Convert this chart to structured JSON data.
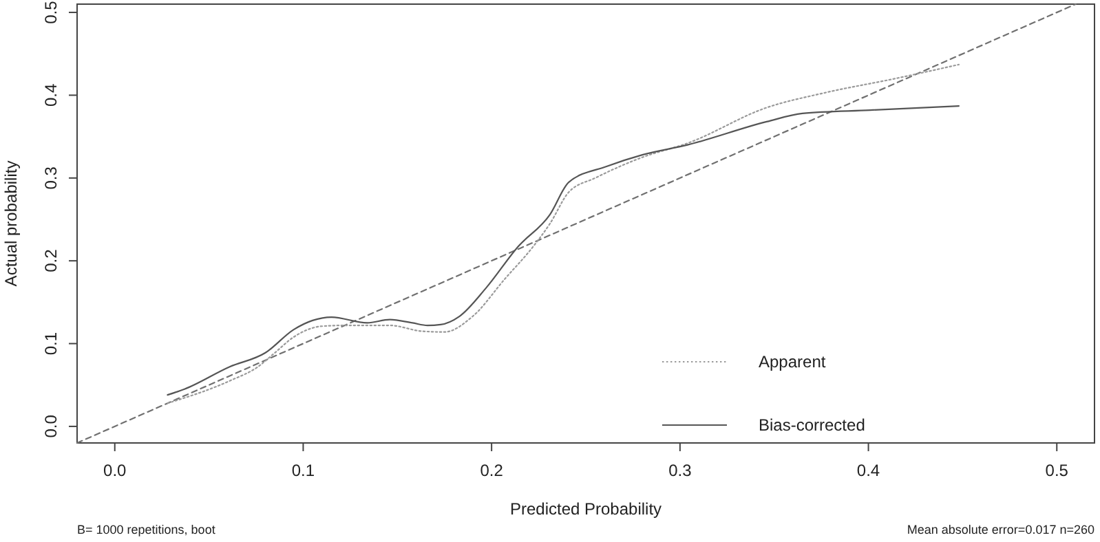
{
  "chart_data": {
    "type": "line",
    "xlabel": "Predicted Probability",
    "ylabel": "Actual probability",
    "xlim": [
      -0.02,
      0.52
    ],
    "xticks": [
      {
        "value": 0,
        "label": "0.0"
      },
      0.1,
      0.2,
      0.3,
      0.4,
      0.5
    ],
    "ylim": [
      -0.02,
      0.51
    ],
    "yticks": [
      {
        "value": 0,
        "label": "0.0"
      },
      0.1,
      0.2,
      0.3,
      0.4,
      0.5
    ],
    "grid": false,
    "legend": "bottom right",
    "marker": "none",
    "annotations": [
      "B= 1000 repetitions, boot",
      "Mean absolute error=0.017 n=260"
    ],
    "series": [
      {
        "color": "#707070",
        "line_style": "dashed",
        "x": [
          -0.02,
          0.51
        ],
        "values": [
          -0.02,
          0.51
        ]
      },
      {
        "name": "Apparent",
        "color": "#9a9a9a",
        "line_style": "dotted",
        "x": [
          0.028,
          0.061,
          0.076,
          0.085,
          0.095,
          0.11,
          0.122,
          0.146,
          0.163,
          0.175,
          0.19,
          0.207,
          0.222,
          0.231,
          0.241,
          0.255,
          0.28,
          0.304,
          0.346,
          0.377,
          0.414,
          0.448
        ],
        "values": [
          0.028,
          0.055,
          0.072,
          0.089,
          0.108,
          0.121,
          0.122,
          0.122,
          0.115,
          0.114,
          0.133,
          0.178,
          0.217,
          0.245,
          0.283,
          0.3,
          0.325,
          0.342,
          0.385,
          0.403,
          0.42,
          0.437
        ]
      },
      {
        "name": "Bias-corrected",
        "color": "#555555",
        "line_style": "solid",
        "x": [
          0.028,
          0.037,
          0.061,
          0.08,
          0.095,
          0.105,
          0.115,
          0.134,
          0.146,
          0.158,
          0.166,
          0.173,
          0.183,
          0.197,
          0.214,
          0.231,
          0.241,
          0.261,
          0.28,
          0.304,
          0.346,
          0.365,
          0.401,
          0.448
        ],
        "values": [
          0.038,
          0.045,
          0.072,
          0.089,
          0.117,
          0.128,
          0.132,
          0.125,
          0.129,
          0.125,
          0.122,
          0.123,
          0.133,
          0.167,
          0.217,
          0.256,
          0.295,
          0.314,
          0.328,
          0.34,
          0.368,
          0.378,
          0.382,
          0.387
        ]
      }
    ]
  }
}
